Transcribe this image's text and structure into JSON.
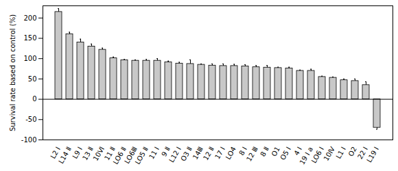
{
  "chart_data": {
    "type": "bar",
    "ylabel": "Survival rate based on control (%)",
    "categories": [
      "L2 Ⅰ",
      "L14 Ⅱ",
      "L9 Ⅰ",
      "13 Ⅱ",
      "10Ⅵ",
      "11 Ⅱ",
      "LO6 Ⅱ",
      "LO6Ⅲ",
      "LO5 Ⅱ",
      "11 Ⅰ",
      "9 Ⅱ",
      "L12 Ⅰ",
      "O3 Ⅱ",
      "14Ⅲ",
      "12 Ⅱ",
      "17 Ⅰ",
      "LO4",
      "8 Ⅰ",
      "12 Ⅲ",
      "8 Ⅱ",
      "O1",
      "O5 Ⅰ",
      "4 Ⅰ",
      "19 Ⅰ a",
      "LO6 Ⅰ",
      "10Ⅳ",
      "L1 Ⅰ",
      "O2",
      "22 Ⅰ",
      "L19 Ⅰ"
    ],
    "values": [
      215,
      160,
      140,
      130,
      122,
      101,
      96,
      95,
      95,
      95,
      91,
      88,
      87,
      85,
      83,
      82,
      82,
      81,
      79,
      78,
      77,
      76,
      70,
      70,
      55,
      53,
      47,
      45,
      35,
      -70
    ],
    "errors": [
      8,
      5,
      8,
      6,
      4,
      3,
      2,
      2,
      3,
      5,
      3,
      3,
      10,
      2,
      4,
      5,
      4,
      4,
      4,
      5,
      2,
      3,
      2,
      4,
      2,
      2,
      3,
      5,
      8,
      4
    ],
    "color": "#c8c8c8",
    "ylim": [
      -100,
      230
    ],
    "yticks": [
      -100,
      -50,
      0,
      50,
      100,
      150,
      200
    ],
    "grid": false
  }
}
